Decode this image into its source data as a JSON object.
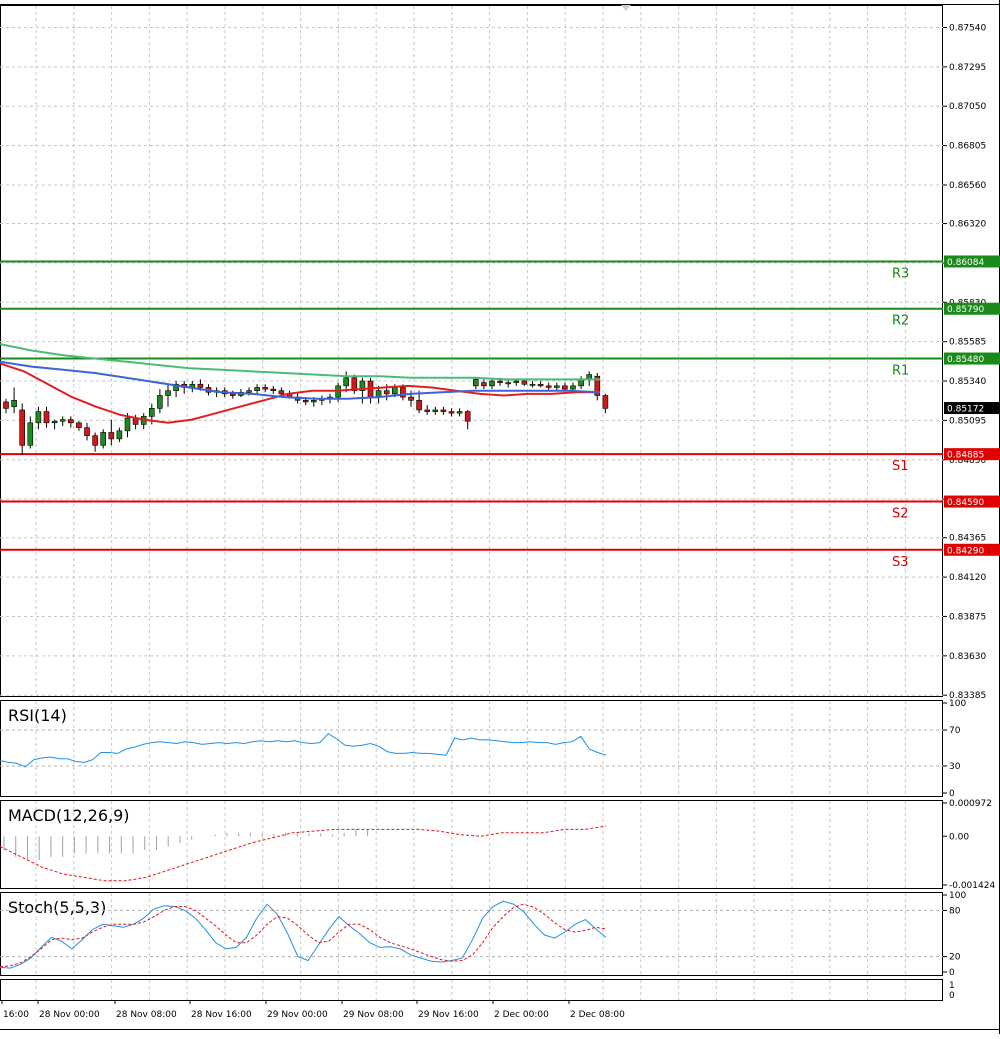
{
  "price_axis": {
    "ticks": [
      "0.87540",
      "0.87295",
      "0.87050",
      "0.86805",
      "0.86560",
      "0.86320",
      "0.86075",
      "0.85830",
      "0.85585",
      "0.85340",
      "0.85095",
      "0.84850",
      "0.84605",
      "0.84365",
      "0.84120",
      "0.83875",
      "0.83630",
      "0.83385"
    ],
    "current_price": "0.85172"
  },
  "levels": [
    {
      "name": "R3",
      "value": "0.86084",
      "kind": "resistance"
    },
    {
      "name": "R2",
      "value": "0.85790",
      "kind": "resistance"
    },
    {
      "name": "R1",
      "value": "0.85480",
      "kind": "resistance"
    },
    {
      "name": "S1",
      "value": "0.84885",
      "kind": "support"
    },
    {
      "name": "S2",
      "value": "0.84590",
      "kind": "support"
    },
    {
      "name": "S3",
      "value": "0.84290",
      "kind": "support"
    }
  ],
  "time_axis": [
    "16:00",
    "28 Nov 00:00",
    "28 Nov 08:00",
    "28 Nov 16:00",
    "29 Nov 00:00",
    "29 Nov 08:00",
    "29 Nov 16:00",
    "2 Dec 00:00",
    "2 Dec 08:00"
  ],
  "indicators": {
    "rsi": {
      "label": "RSI(14)",
      "ticks": [
        "100",
        "70",
        "30",
        "0"
      ]
    },
    "macd": {
      "label": "MACD(12,26,9)",
      "ticks": [
        "0.000972",
        "0.00",
        "-0.001424"
      ]
    },
    "stoch": {
      "label": "Stoch(5,5,3)",
      "ticks": [
        "100",
        "80",
        "20",
        "0"
      ]
    },
    "extra": {
      "ticks": [
        "1",
        "0"
      ]
    }
  },
  "colors": {
    "resistance": "#1a8a1a",
    "support": "#e00000",
    "ma_fast": "#e02020",
    "ma_mid": "#3c64d8",
    "ma_slow": "#4cbb78",
    "bull": "#1e8a1e",
    "bear": "#d01818",
    "indicator": "#1e90e8",
    "signal": "#e01818"
  },
  "chart_data": [
    {
      "type": "candlestick",
      "title": "",
      "ylim": [
        0.8338,
        0.8768
      ],
      "x_labels": [
        "16:00",
        "28 Nov 00:00",
        "28 Nov 08:00",
        "28 Nov 16:00",
        "29 Nov 00:00",
        "29 Nov 08:00",
        "29 Nov 16:00",
        "2 Dec 00:00",
        "2 Dec 08:00"
      ],
      "horizontal_levels": [
        {
          "name": "R3",
          "value": 0.86084
        },
        {
          "name": "R2",
          "value": 0.8579
        },
        {
          "name": "R1",
          "value": 0.8548
        },
        {
          "name": "S1",
          "value": 0.84885
        },
        {
          "name": "S2",
          "value": 0.8459
        },
        {
          "name": "S3",
          "value": 0.8429
        }
      ],
      "last_price": 0.85172,
      "candles": [
        [
          0.8521,
          0.8523,
          0.8514,
          0.8517
        ],
        [
          0.8518,
          0.853,
          0.8514,
          0.8522
        ],
        [
          0.8516,
          0.852,
          0.8488,
          0.8494
        ],
        [
          0.8494,
          0.8512,
          0.8492,
          0.8508
        ],
        [
          0.8508,
          0.8518,
          0.8504,
          0.8515
        ],
        [
          0.8515,
          0.8518,
          0.8505,
          0.8508
        ],
        [
          0.8508,
          0.851,
          0.8504,
          0.8509
        ],
        [
          0.8509,
          0.8512,
          0.8506,
          0.851
        ],
        [
          0.851,
          0.8512,
          0.8505,
          0.8508
        ],
        [
          0.8508,
          0.8509,
          0.8503,
          0.8505
        ],
        [
          0.8505,
          0.8508,
          0.8497,
          0.85
        ],
        [
          0.85,
          0.8502,
          0.849,
          0.8494
        ],
        [
          0.8494,
          0.8504,
          0.8492,
          0.8502
        ],
        [
          0.8502,
          0.851,
          0.8494,
          0.8498
        ],
        [
          0.8498,
          0.8505,
          0.8496,
          0.8503
        ],
        [
          0.8503,
          0.8514,
          0.8499,
          0.8511
        ],
        [
          0.8511,
          0.8513,
          0.8504,
          0.8507
        ],
        [
          0.8507,
          0.8514,
          0.8504,
          0.8512
        ],
        [
          0.8512,
          0.852,
          0.8507,
          0.8517
        ],
        [
          0.8517,
          0.8529,
          0.8514,
          0.8525
        ],
        [
          0.8525,
          0.8532,
          0.8518,
          0.8528
        ],
        [
          0.8528,
          0.8534,
          0.8524,
          0.8532
        ],
        [
          0.8532,
          0.8534,
          0.8526,
          0.853
        ],
        [
          0.853,
          0.8534,
          0.8527,
          0.8532
        ],
        [
          0.8532,
          0.8535,
          0.8528,
          0.853
        ],
        [
          0.853,
          0.8532,
          0.8525,
          0.8527
        ],
        [
          0.8527,
          0.853,
          0.8524,
          0.8528
        ],
        [
          0.8528,
          0.853,
          0.8524,
          0.8526
        ],
        [
          0.8526,
          0.8528,
          0.8523,
          0.8525
        ],
        [
          0.8525,
          0.8529,
          0.8524,
          0.8527
        ],
        [
          0.8527,
          0.853,
          0.8525,
          0.8528
        ],
        [
          0.8528,
          0.8532,
          0.8526,
          0.853
        ],
        [
          0.853,
          0.8532,
          0.8527,
          0.8529
        ],
        [
          0.8529,
          0.8531,
          0.8526,
          0.8528
        ],
        [
          0.8528,
          0.853,
          0.8525,
          0.8526
        ],
        [
          0.8526,
          0.8528,
          0.8523,
          0.8524
        ],
        [
          0.8524,
          0.8527,
          0.852,
          0.8522
        ],
        [
          0.8522,
          0.8524,
          0.8519,
          0.8521
        ],
        [
          0.8521,
          0.8524,
          0.8518,
          0.8522
        ],
        [
          0.8522,
          0.8525,
          0.8519,
          0.8523
        ],
        [
          0.8523,
          0.8526,
          0.852,
          0.8524
        ],
        [
          0.8524,
          0.8533,
          0.8521,
          0.8531
        ],
        [
          0.8531,
          0.854,
          0.8527,
          0.8536
        ],
        [
          0.8536,
          0.8538,
          0.8526,
          0.8528
        ],
        [
          0.8528,
          0.8536,
          0.852,
          0.8534
        ],
        [
          0.8534,
          0.8536,
          0.852,
          0.8524
        ],
        [
          0.8524,
          0.8531,
          0.852,
          0.8528
        ],
        [
          0.8528,
          0.8532,
          0.8522,
          0.8526
        ],
        [
          0.8526,
          0.8532,
          0.8524,
          0.853
        ],
        [
          0.853,
          0.8532,
          0.8522,
          0.8524
        ],
        [
          0.8524,
          0.8528,
          0.8518,
          0.8522
        ],
        [
          0.8522,
          0.8528,
          0.8514,
          0.8516
        ],
        [
          0.8516,
          0.8519,
          0.8513,
          0.8515
        ],
        [
          0.8515,
          0.8518,
          0.8513,
          0.8516
        ],
        [
          0.8516,
          0.8518,
          0.8513,
          0.8515
        ],
        [
          0.8515,
          0.8517,
          0.8512,
          0.8514
        ],
        [
          0.8514,
          0.8517,
          0.8512,
          0.8515
        ],
        [
          0.8515,
          0.8516,
          0.8504,
          0.8509
        ],
        [
          0.8531,
          0.8536,
          0.8529,
          0.8535
        ],
        [
          0.8533,
          0.8535,
          0.8529,
          0.8531
        ],
        [
          0.8531,
          0.8535,
          0.8529,
          0.8534
        ],
        [
          0.8534,
          0.8536,
          0.8531,
          0.8533
        ],
        [
          0.8533,
          0.8535,
          0.853,
          0.8533
        ],
        [
          0.8533,
          0.8535,
          0.8531,
          0.8534
        ],
        [
          0.8534,
          0.8535,
          0.8531,
          0.8532
        ],
        [
          0.8532,
          0.8534,
          0.853,
          0.8532
        ],
        [
          0.8532,
          0.8534,
          0.853,
          0.8531
        ],
        [
          0.8531,
          0.8533,
          0.8528,
          0.853
        ],
        [
          0.853,
          0.8533,
          0.8528,
          0.8531
        ],
        [
          0.8531,
          0.8533,
          0.8528,
          0.8529
        ],
        [
          0.8529,
          0.8533,
          0.8527,
          0.8531
        ],
        [
          0.8531,
          0.8537,
          0.8529,
          0.8535
        ],
        [
          0.8535,
          0.854,
          0.8531,
          0.8538
        ],
        [
          0.8537,
          0.8539,
          0.8522,
          0.8525
        ],
        [
          0.8525,
          0.8526,
          0.8514,
          0.8517
        ]
      ],
      "series": [
        {
          "values": [
            0.8545,
            0.854,
            0.8532,
            0.8524,
            0.8518,
            0.8513,
            0.851,
            0.8508,
            0.851,
            0.8514,
            0.8518,
            0.8522,
            0.8526,
            0.8528,
            0.8528,
            0.8529,
            0.853,
            0.8531,
            0.853,
            0.8528,
            0.8526,
            0.8525,
            0.8526,
            0.8526,
            0.8527,
            0.8527
          ]
        },
        {
          "values": [
            0.8546,
            0.8543,
            0.8541,
            0.8539,
            0.8536,
            0.8533,
            0.853,
            0.8527,
            0.8526,
            0.8524,
            0.8523,
            0.8523,
            0.8524,
            0.8526,
            0.8527,
            0.8528,
            0.8528,
            0.8528,
            0.8528,
            0.8527
          ]
        },
        {
          "values": [
            0.8557,
            0.8553,
            0.855,
            0.8548,
            0.8546,
            0.8544,
            0.8542,
            0.8541,
            0.854,
            0.8539,
            0.8538,
            0.8537,
            0.8537,
            0.8536,
            0.8536,
            0.8536,
            0.8535,
            0.8535,
            0.8535,
            0.8535
          ]
        }
      ]
    },
    {
      "type": "line",
      "title": "RSI(14)",
      "ylim": [
        0,
        100
      ],
      "series": [
        {
          "values": [
            36,
            34,
            33,
            29,
            37,
            39,
            40,
            38,
            38,
            35,
            34,
            37,
            45,
            45,
            44,
            49,
            51,
            54,
            56,
            57,
            56,
            55,
            57,
            56,
            54,
            55,
            56,
            55,
            56,
            55,
            57,
            58,
            57,
            58,
            57,
            58,
            56,
            55,
            56,
            66,
            60,
            53,
            52,
            53,
            55,
            52,
            46,
            44,
            44,
            45,
            44,
            44,
            43,
            42,
            61,
            59,
            61,
            59,
            59,
            58,
            57,
            56,
            56,
            57,
            56,
            56,
            54,
            56,
            57,
            63,
            49,
            45,
            42
          ]
        }
      ]
    },
    {
      "type": "line",
      "title": "MACD(12,26,9)",
      "ylim": [
        -0.001424,
        0.000972
      ],
      "series": [
        {
          "values": [
            -0.0004,
            -0.0006,
            -0.0007,
            -0.0007,
            -0.0006,
            -0.0006,
            -0.0005,
            -0.0005,
            -0.0005,
            -0.0005,
            -0.0005,
            -0.0005,
            -0.0004,
            -0.0004,
            -0.0003,
            -0.0002,
            -0.0001,
            0,
            5e-05,
            0.0001,
            0.0001,
            0.0001,
            8e-05,
            7e-05,
            0.0001,
            0.0001,
            0.0001,
            8e-05,
            5e-05,
            0.0001,
            0.0002,
            0.0002
          ]
        },
        {
          "values": [
            -0.0003,
            -0.0006,
            -0.0009,
            -0.0011,
            -0.0012,
            -0.0013,
            -0.0013,
            -0.0012,
            -0.001,
            -0.0008,
            -0.0006,
            -0.0004,
            -0.0002,
            -5e-05,
            0.0001,
            0.00015,
            0.0002,
            0.0002,
            0.0002,
            0.0002,
            0.0002,
            0.00015,
            5e-05,
            0,
            0.0001,
            0.0001,
            0.0001,
            0.0002,
            0.0002,
            0.0003
          ]
        }
      ]
    },
    {
      "type": "line",
      "title": "Stoch(5,5,3)",
      "ylim": [
        0,
        100
      ],
      "series": [
        {
          "values": [
            6,
            5,
            10,
            18,
            32,
            45,
            40,
            30,
            42,
            55,
            62,
            60,
            58,
            62,
            70,
            82,
            86,
            85,
            80,
            70,
            55,
            38,
            30,
            32,
            45,
            70,
            88,
            75,
            50,
            20,
            15,
            35,
            55,
            72,
            60,
            50,
            38,
            32,
            33,
            30,
            22,
            18,
            14,
            13,
            15,
            18,
            42,
            70,
            85,
            92,
            88,
            78,
            62,
            48,
            44,
            52,
            62,
            68,
            56,
            45
          ]
        },
        {
          "values": [
            7,
            8,
            12,
            20,
            30,
            42,
            44,
            42,
            44,
            52,
            58,
            62,
            62,
            62,
            65,
            72,
            80,
            85,
            85,
            80,
            70,
            60,
            48,
            38,
            38,
            48,
            62,
            72,
            70,
            60,
            48,
            38,
            40,
            52,
            62,
            62,
            55,
            45,
            38,
            34,
            30,
            25,
            20,
            16,
            14,
            15,
            22,
            38,
            58,
            72,
            84,
            88,
            84,
            75,
            64,
            55,
            52,
            54,
            58,
            56
          ]
        }
      ]
    }
  ]
}
